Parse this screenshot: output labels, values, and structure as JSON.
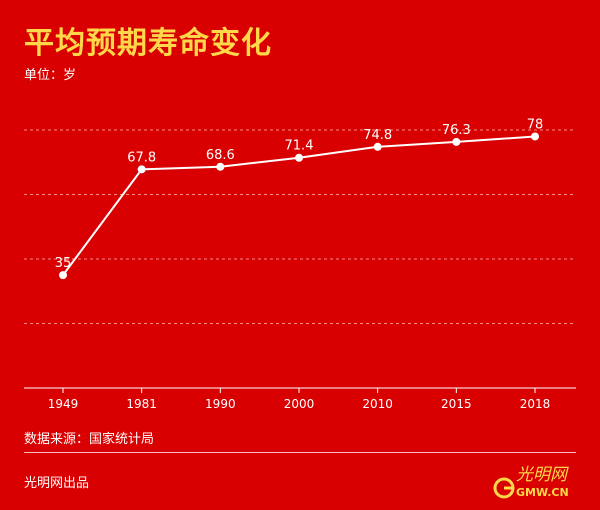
{
  "header": {
    "title": "平均预期寿命变化",
    "unit": "单位：岁"
  },
  "footer": {
    "source": "数据来源：国家统计局",
    "publisher": "光明网出品",
    "logo_text": "光明网",
    "logo_subtext": "GMW.CN"
  },
  "colors": {
    "background": "#d80000",
    "title": "#ffd84a",
    "line": "#ffffff",
    "grid": "#ff8a8a",
    "logo": "#ffd84a"
  },
  "chart_data": {
    "type": "line",
    "title": "平均预期寿命变化",
    "xlabel": "",
    "ylabel": "单位：岁",
    "categories": [
      "1949",
      "1981",
      "1990",
      "2000",
      "2010",
      "2015",
      "2018"
    ],
    "series": [
      {
        "values": [
          35,
          67.8,
          68.6,
          71.4,
          74.8,
          76.3,
          78
        ],
        "labels": [
          "35",
          "67.8",
          "68.6",
          "71.4",
          "74.8",
          "76.3",
          "78"
        ]
      }
    ],
    "ylim": [
      0,
      80
    ],
    "grid": true,
    "legend": "none"
  }
}
